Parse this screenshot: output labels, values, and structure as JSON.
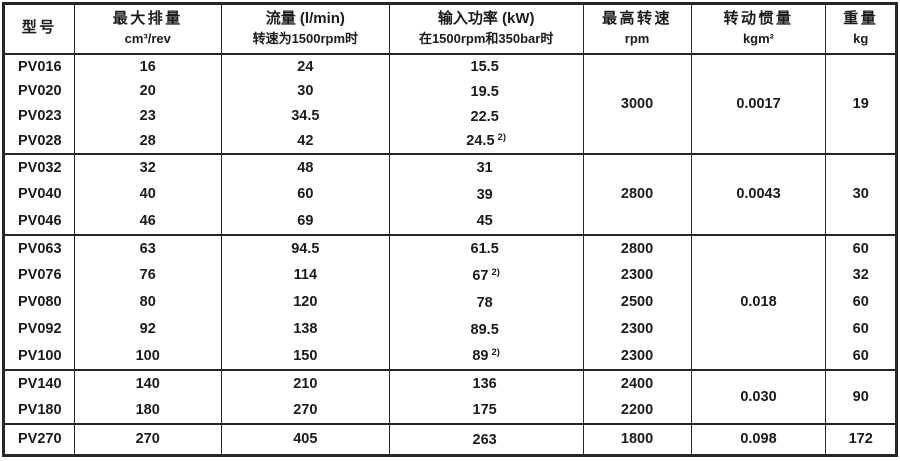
{
  "table": {
    "columns": [
      {
        "title": "型号",
        "subtitle": ""
      },
      {
        "title": "最大排量",
        "subtitle": "cm³/rev"
      },
      {
        "title": "流量 (l/min)",
        "subtitle": "转速为1500rpm时"
      },
      {
        "title": "输入功率 (kW)",
        "subtitle": "在1500rpm和350bar时"
      },
      {
        "title": "最高转速",
        "subtitle": "rpm"
      },
      {
        "title": "转动惯量",
        "subtitle": "kgm²"
      },
      {
        "title": "重量",
        "subtitle": "kg"
      }
    ],
    "groups": [
      {
        "rows": [
          {
            "model": "PV016",
            "displacement": "16",
            "flow": "24",
            "power": "15.5",
            "power_note": ""
          },
          {
            "model": "PV020",
            "displacement": "20",
            "flow": "30",
            "power": "19.5",
            "power_note": ""
          },
          {
            "model": "PV023",
            "displacement": "23",
            "flow": "34.5",
            "power": "22.5",
            "power_note": ""
          },
          {
            "model": "PV028",
            "displacement": "28",
            "flow": "42",
            "power": "24.5",
            "power_note": "2)"
          }
        ],
        "speed": "3000",
        "inertia": "0.0017",
        "weight": "19"
      },
      {
        "rows": [
          {
            "model": "PV032",
            "displacement": "32",
            "flow": "48",
            "power": "31",
            "power_note": ""
          },
          {
            "model": "PV040",
            "displacement": "40",
            "flow": "60",
            "power": "39",
            "power_note": ""
          },
          {
            "model": "PV046",
            "displacement": "46",
            "flow": "69",
            "power": "45",
            "power_note": ""
          }
        ],
        "speed": "2800",
        "inertia": "0.0043",
        "weight": "30"
      },
      {
        "rows": [
          {
            "model": "PV063",
            "displacement": "63",
            "flow": "94.5",
            "power": "61.5",
            "power_note": "",
            "speed": "2800",
            "weight": "60"
          },
          {
            "model": "PV076",
            "displacement": "76",
            "flow": "114",
            "power": "67",
            "power_note": "2)",
            "speed": "2300",
            "weight": "32"
          },
          {
            "model": "PV080",
            "displacement": "80",
            "flow": "120",
            "power": "78",
            "power_note": "",
            "speed": "2500",
            "weight": "60"
          },
          {
            "model": "PV092",
            "displacement": "92",
            "flow": "138",
            "power": "89.5",
            "power_note": "",
            "speed": "2300",
            "weight": "60"
          },
          {
            "model": "PV100",
            "displacement": "100",
            "flow": "150",
            "power": "89",
            "power_note": "2)",
            "speed": "2300",
            "weight": "60"
          }
        ],
        "inertia": "0.018"
      },
      {
        "rows": [
          {
            "model": "PV140",
            "displacement": "140",
            "flow": "210",
            "power": "136",
            "power_note": "",
            "speed": "2400"
          },
          {
            "model": "PV180",
            "displacement": "180",
            "flow": "270",
            "power": "175",
            "power_note": "",
            "speed": "2200"
          }
        ],
        "inertia": "0.030",
        "weight": "90"
      },
      {
        "rows": [
          {
            "model": "PV270",
            "displacement": "270",
            "flow": "405",
            "power": "263",
            "power_note": "",
            "speed": "1800",
            "inertia": "0.098",
            "weight": "172"
          }
        ]
      }
    ]
  }
}
